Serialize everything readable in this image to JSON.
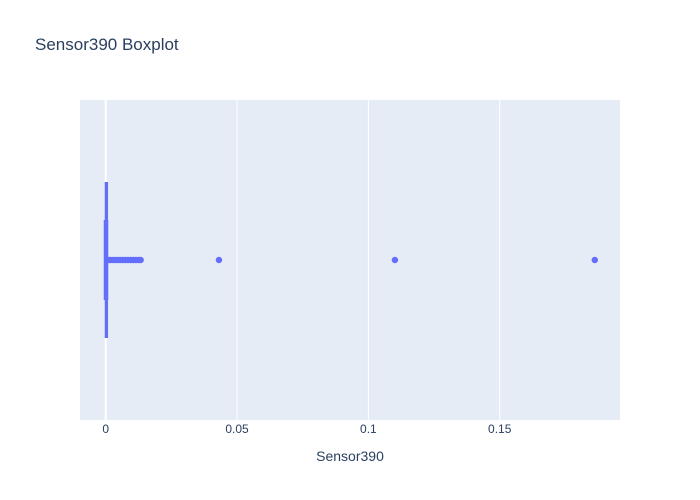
{
  "chart_data": {
    "type": "box",
    "orientation": "horizontal",
    "title": "Sensor390 Boxplot",
    "xlabel": "Sensor390",
    "ylabel": "",
    "xlim": [
      -0.0098,
      0.1958
    ],
    "x_ticks": [
      {
        "value": 0,
        "label": "0"
      },
      {
        "value": 0.05,
        "label": "0.05"
      },
      {
        "value": 0.1,
        "label": "0.1"
      },
      {
        "value": 0.15,
        "label": "0.15"
      }
    ],
    "grid": true,
    "legend": "none",
    "series": [
      {
        "min": 0,
        "q1": 0,
        "median": 0,
        "q3": 0.0002,
        "upper_fence": 0.0005,
        "outliers": [
          0.0008,
          0.0015,
          0.0025,
          0.0035,
          0.0045,
          0.0055,
          0.0065,
          0.0075,
          0.0085,
          0.0095,
          0.0105,
          0.0115,
          0.0125,
          0.0133,
          0.0431,
          0.1101,
          0.1862
        ]
      }
    ],
    "colors": {
      "box": "#636efa",
      "plot_bg": "#e5ecf6",
      "grid": "#ffffff",
      "text": "#2a3f5f"
    }
  }
}
